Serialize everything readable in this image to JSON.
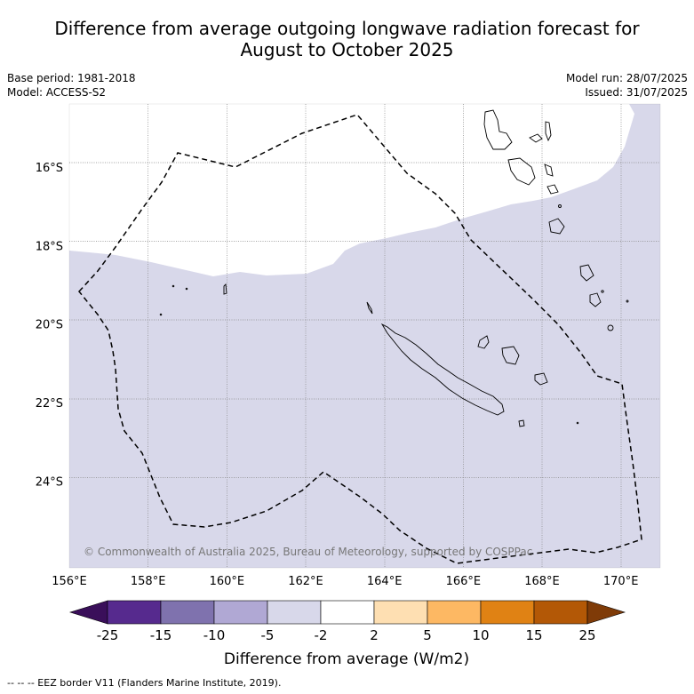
{
  "title_line1": "Difference from average outgoing longwave radiation forecast for",
  "title_line2": "August to October 2025",
  "base_period": "Base period: 1981-2018",
  "model": "Model: ACCESS-S2",
  "model_run": "Model run: 28/07/2025",
  "issued": "Issued: 31/07/2025",
  "copyright": "© Commonwealth of Australia 2025, Bureau of Meteorology, supported by COSPPac",
  "map": {
    "lon_range": [
      156,
      171
    ],
    "lat_range": [
      -26.2,
      -14.4
    ],
    "lon_ticks": [
      156,
      158,
      160,
      162,
      164,
      166,
      168,
      170
    ],
    "lon_labels": [
      "156°E",
      "158°E",
      "160°E",
      "162°E",
      "164°E",
      "166°E",
      "168°E",
      "170°E"
    ],
    "lat_ticks": [
      -16,
      -18,
      -20,
      -22,
      -24
    ],
    "lat_labels": [
      "16°S",
      "18°S",
      "20°S",
      "22°S",
      "24°S"
    ],
    "grid": true,
    "anomaly_field": [
      {
        "class": "-5 to -2",
        "color": "#d8d8ea",
        "extent": "majority of domain south of ~18.5°S and east side"
      },
      {
        "class": "-2 to 2",
        "color": "#ffffff",
        "extent": "north-west region"
      }
    ]
  },
  "colorbar": {
    "label": "Difference from average (W/m2)",
    "tick_labels": [
      "-25",
      "-15",
      "-10",
      "-5",
      "-2",
      "2",
      "5",
      "10",
      "15",
      "25"
    ],
    "colors": [
      "#3a0f5a",
      "#562a8e",
      "#7f72ae",
      "#b0a8d4",
      "#d8d8ea",
      "#ffffff",
      "#fedfb2",
      "#fdb863",
      "#e08214",
      "#b35806",
      "#7f3b08"
    ]
  },
  "legend_footer": "-- -- -- EEZ border V11 (Flanders Marine Institute, 2019)."
}
